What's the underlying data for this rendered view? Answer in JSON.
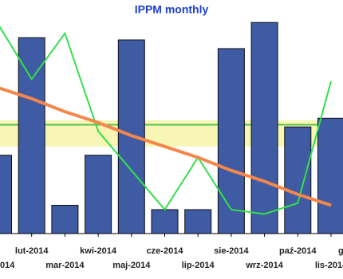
{
  "chart_data": {
    "type": "bar",
    "title": "IPPM monthly",
    "categories": [
      "014",
      "lut-2014",
      "mar-2014",
      "kwi-2014",
      "maj-2014",
      "cze-2014",
      "lip-2014",
      "sie-2014",
      "wrz-2014",
      "paź-2014",
      "lis-2014",
      "g"
    ],
    "series": [
      {
        "type": "bar",
        "color": "#3e5ba3",
        "values": [
          36,
          90,
          13,
          36,
          89,
          11,
          11,
          85,
          97,
          49,
          53,
          null
        ]
      },
      {
        "type": "line",
        "color": "#33e04a",
        "values": [
          96,
          71,
          92,
          47,
          29,
          11,
          35,
          11,
          9,
          14,
          70,
          null
        ]
      },
      {
        "type": "line",
        "color": "#f5874c",
        "values": [
          67,
          62,
          56,
          51,
          45,
          40,
          35,
          29,
          24,
          18,
          13,
          null
        ]
      }
    ],
    "band": [
      40,
      52
    ],
    "band_color": "#f8f6b4",
    "target": 50,
    "target_color": "#55c24f",
    "ylim": [
      0,
      100
    ]
  }
}
